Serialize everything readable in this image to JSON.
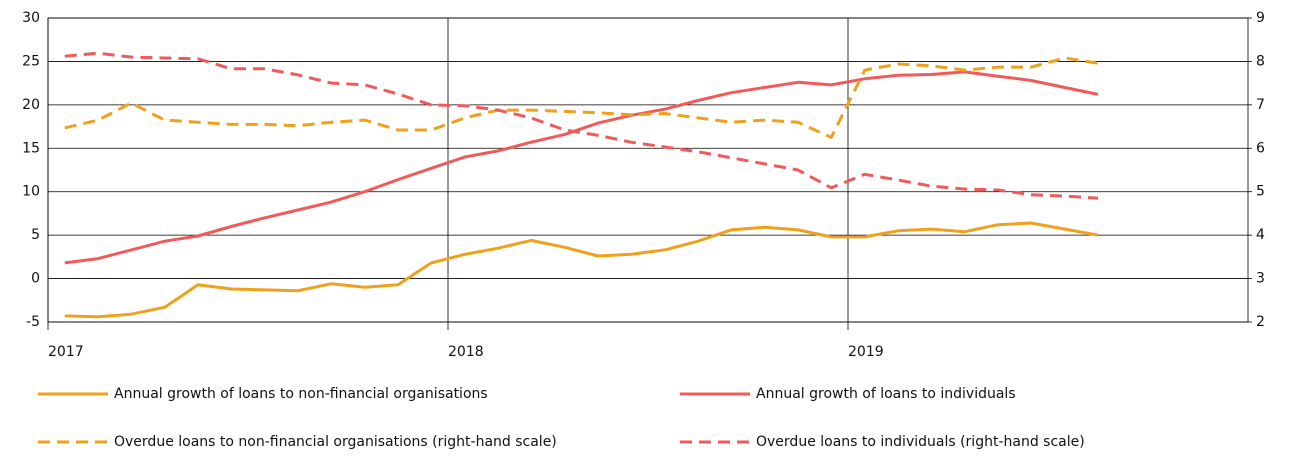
{
  "chart_data": {
    "type": "line",
    "x": [
      2017.042,
      2017.125,
      2017.208,
      2017.292,
      2017.375,
      2017.458,
      2017.542,
      2017.625,
      2017.708,
      2017.792,
      2017.875,
      2017.958,
      2018.042,
      2018.125,
      2018.208,
      2018.292,
      2018.375,
      2018.458,
      2018.542,
      2018.625,
      2018.708,
      2018.792,
      2018.875,
      2018.958,
      2019.042,
      2019.125,
      2019.208,
      2019.292,
      2019.375,
      2019.458,
      2019.542,
      2019.625
    ],
    "xlim": [
      2017,
      2020
    ],
    "xticks": [
      2017,
      2018,
      2019
    ],
    "ylim": [
      -5,
      30
    ],
    "yticks": [
      -5,
      0,
      5,
      10,
      15,
      20,
      25,
      30
    ],
    "y2lim": [
      2,
      9
    ],
    "y2ticks": [
      2,
      3,
      4,
      5,
      6,
      7,
      8,
      9
    ],
    "grid": true,
    "legend": "bottom",
    "series": [
      {
        "name": "Annual growth of loans to non-financial organisations",
        "color": "#f0a11b",
        "style": "solid",
        "values": [
          -4.3,
          -4.4,
          -4.1,
          -3.3,
          -0.7,
          -1.2,
          -1.3,
          -1.4,
          -0.6,
          -1.0,
          -0.7,
          1.8,
          2.8,
          3.5,
          4.4,
          3.6,
          2.6,
          2.8,
          3.3,
          4.3,
          5.6,
          5.9,
          5.6,
          4.8,
          4.8,
          5.5,
          5.7,
          5.4,
          6.2,
          6.4,
          5.7,
          5.0
        ]
      },
      {
        "name": "Annual growth of loans to individuals",
        "color": "#f05a5a",
        "style": "solid",
        "values": [
          1.8,
          2.3,
          3.3,
          4.3,
          4.9,
          6.0,
          7.0,
          7.9,
          8.8,
          10.0,
          11.4,
          12.7,
          14.0,
          14.7,
          15.7,
          16.6,
          17.9,
          18.8,
          19.5,
          20.5,
          21.4,
          22.0,
          22.6,
          22.3,
          23.0,
          23.4,
          23.5,
          23.8,
          23.3,
          22.8,
          22.0,
          21.2
        ]
      },
      {
        "name": "Overdue loans to non-financial organisations (right-hand scale)",
        "color": "#f0a11b",
        "style": "dashed",
        "axis": "y2",
        "values": [
          6.47,
          6.65,
          7.04,
          6.65,
          6.6,
          6.55,
          6.55,
          6.52,
          6.6,
          6.65,
          6.42,
          6.42,
          6.7,
          6.88,
          6.88,
          6.85,
          6.82,
          6.77,
          6.8,
          6.7,
          6.6,
          6.65,
          6.6,
          6.25,
          7.8,
          7.94,
          7.9,
          7.8,
          7.87,
          7.87,
          8.08,
          7.96
        ]
      },
      {
        "name": "Overdue loans to individuals (right-hand scale)",
        "color": "#f05a5a",
        "style": "dashed",
        "axis": "y2",
        "values": [
          8.12,
          8.19,
          8.1,
          8.08,
          8.06,
          7.83,
          7.83,
          7.69,
          7.5,
          7.46,
          7.25,
          7.0,
          6.98,
          6.88,
          6.7,
          6.42,
          6.3,
          6.14,
          6.03,
          5.92,
          5.78,
          5.64,
          5.5,
          5.09,
          5.4,
          5.27,
          5.13,
          5.06,
          5.04,
          4.93,
          4.9,
          4.85
        ]
      }
    ]
  }
}
